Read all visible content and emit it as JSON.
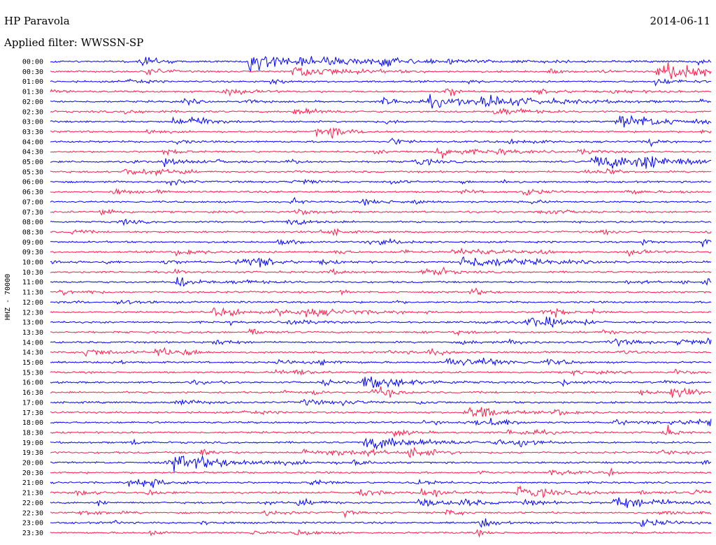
{
  "station_title": "HP Paravola",
  "date": "2014-06-11",
  "filter_label": "Applied filter: WWSSN-SP",
  "channel_label": "HHZ - 70000",
  "colors": {
    "a": "#0000ff",
    "b": "#ff1a4a"
  },
  "chart_data": {
    "type": "line",
    "title": "HP Paravola",
    "subtitle": "Applied filter: WWSSN-SP",
    "ylabel": "HHZ - 70000",
    "xlabel": "",
    "rows": [
      {
        "time": "00:00"
      },
      {
        "time": "00:30"
      },
      {
        "time": "01:00"
      },
      {
        "time": "01:30"
      },
      {
        "time": "02:00"
      },
      {
        "time": "02:30"
      },
      {
        "time": "03:00"
      },
      {
        "time": "03:30"
      },
      {
        "time": "04:00"
      },
      {
        "time": "04:30"
      },
      {
        "time": "05:00"
      },
      {
        "time": "05:30"
      },
      {
        "time": "06:00"
      },
      {
        "time": "06:30"
      },
      {
        "time": "07:00"
      },
      {
        "time": "07:30"
      },
      {
        "time": "08:00"
      },
      {
        "time": "08:30"
      },
      {
        "time": "09:00"
      },
      {
        "time": "09:30"
      },
      {
        "time": "10:00"
      },
      {
        "time": "10:30"
      },
      {
        "time": "11:00"
      },
      {
        "time": "11:30"
      },
      {
        "time": "12:00"
      },
      {
        "time": "12:30"
      },
      {
        "time": "13:00"
      },
      {
        "time": "13:30"
      },
      {
        "time": "14:00"
      },
      {
        "time": "14:30"
      },
      {
        "time": "15:00"
      },
      {
        "time": "15:30"
      },
      {
        "time": "16:00"
      },
      {
        "time": "16:30"
      },
      {
        "time": "17:00"
      },
      {
        "time": "17:30"
      },
      {
        "time": "18:00"
      },
      {
        "time": "18:30"
      },
      {
        "time": "19:00"
      },
      {
        "time": "19:30"
      },
      {
        "time": "20:00"
      },
      {
        "time": "20:30"
      },
      {
        "time": "21:00"
      },
      {
        "time": "21:30"
      },
      {
        "time": "22:00"
      },
      {
        "time": "22:30"
      },
      {
        "time": "23:00"
      },
      {
        "time": "23:30"
      }
    ],
    "trace_duration_minutes": 30,
    "events": [
      {
        "row": "00:00",
        "minute": 9.0,
        "amplitude": 9,
        "duration": 10
      },
      {
        "row": "02:00",
        "minute": 19.6,
        "amplitude": 7,
        "duration": 6
      },
      {
        "row": "00:30",
        "minute": 11.0,
        "amplitude": 9,
        "duration": 4
      },
      {
        "row": "00:30",
        "minute": 28.0,
        "amplitude": 8,
        "duration": 3
      },
      {
        "row": "03:00",
        "minute": 25.7,
        "amplitude": 6,
        "duration": 6
      },
      {
        "row": "05:00",
        "minute": 24.6,
        "amplitude": 9,
        "duration": 8
      },
      {
        "row": "09:30",
        "minute": 18.6,
        "amplitude": 5,
        "duration": 3
      },
      {
        "row": "10:00",
        "minute": 18.6,
        "amplitude": 9,
        "duration": 5
      },
      {
        "row": "12:30",
        "minute": 11.3,
        "amplitude": 5,
        "duration": 5
      },
      {
        "row": "14:00",
        "minute": 28.4,
        "amplitude": 5,
        "duration": 2
      },
      {
        "row": "15:00",
        "minute": 18.0,
        "amplitude": 7,
        "duration": 3
      },
      {
        "row": "16:00",
        "minute": 14.2,
        "amplitude": 8,
        "duration": 4
      },
      {
        "row": "19:00",
        "minute": 14.2,
        "amplitude": 9,
        "duration": 5
      },
      {
        "row": "19:30",
        "minute": 16.3,
        "amplitude": 8,
        "duration": 2
      },
      {
        "row": "20:00",
        "minute": 5.6,
        "amplitude": 9,
        "duration": 6
      },
      {
        "row": "21:00",
        "minute": 4.0,
        "amplitude": 6,
        "duration": 2
      },
      {
        "row": "21:30",
        "minute": 21.2,
        "amplitude": 9,
        "duration": 3
      },
      {
        "row": "22:00",
        "minute": 25.5,
        "amplitude": 9,
        "duration": 4
      },
      {
        "row": "22:00",
        "minute": 18.5,
        "amplitude": 5,
        "duration": 2
      }
    ]
  }
}
